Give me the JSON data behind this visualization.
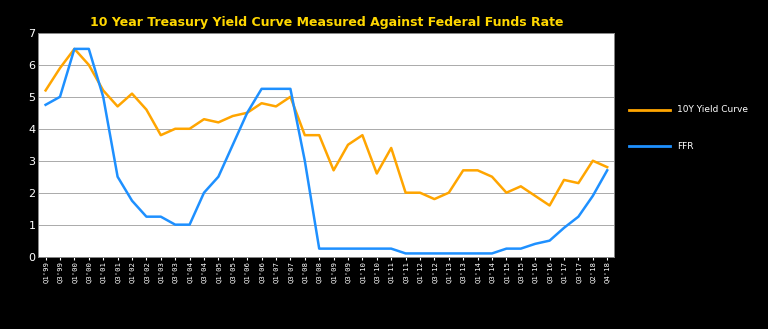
{
  "title": "10 Year Treasury Yield Curve Measured Against Federal Funds Rate",
  "title_color": "#FFD700",
  "figure_bg_color": "#000000",
  "plot_bg_color": "#ffffff",
  "grid_color": "#aaaaaa",
  "ylim": [
    0,
    7
  ],
  "yticks": [
    0,
    1,
    2,
    3,
    4,
    5,
    6,
    7
  ],
  "line_10y_color": "#FFA500",
  "line_ffr_color": "#1E90FF",
  "line_width": 1.8,
  "legend_labels": [
    "10Y Yield Curve",
    "FFR"
  ],
  "labels": [
    "Q1'99",
    "Q3'99",
    "Q1'00",
    "Q3'00",
    "Q1'01",
    "Q3'01",
    "Q1'02",
    "Q3'02",
    "Q1'03",
    "Q3'03",
    "Q1'04",
    "Q3'04",
    "Q1'05",
    "Q3'05",
    "Q1'06",
    "Q3'06",
    "Q1'07",
    "Q3'07",
    "Q1'08",
    "Q3'08",
    "Q1'09",
    "Q3'09",
    "Q1'10",
    "Q3'10",
    "Q1'11",
    "Q3'11",
    "Q1'12",
    "Q3'12",
    "Q1'13",
    "Q3'13",
    "Q1'14",
    "Q3'14",
    "Q1'15",
    "Q3'15",
    "Q1'16",
    "Q3'16",
    "Q1'17",
    "Q3'17",
    "Q2'18",
    "Q4'18"
  ],
  "yield_10y": [
    5.2,
    5.9,
    6.5,
    6.0,
    5.2,
    4.7,
    5.1,
    4.6,
    3.8,
    4.0,
    4.0,
    4.3,
    4.2,
    4.4,
    4.5,
    4.8,
    4.7,
    5.0,
    3.8,
    3.8,
    2.7,
    3.5,
    3.8,
    2.6,
    3.4,
    2.0,
    2.0,
    1.8,
    2.0,
    2.7,
    2.7,
    2.5,
    2.0,
    2.2,
    1.9,
    1.6,
    2.4,
    2.3,
    3.0,
    2.8
  ],
  "ffr": [
    4.75,
    5.0,
    6.5,
    6.5,
    5.0,
    2.5,
    1.75,
    1.25,
    1.25,
    1.0,
    1.0,
    2.0,
    2.5,
    3.5,
    4.5,
    5.25,
    5.25,
    5.25,
    3.0,
    0.25,
    0.25,
    0.25,
    0.25,
    0.25,
    0.25,
    0.1,
    0.1,
    0.1,
    0.1,
    0.1,
    0.1,
    0.1,
    0.25,
    0.25,
    0.4,
    0.5,
    0.9,
    1.25,
    1.9,
    2.7
  ]
}
